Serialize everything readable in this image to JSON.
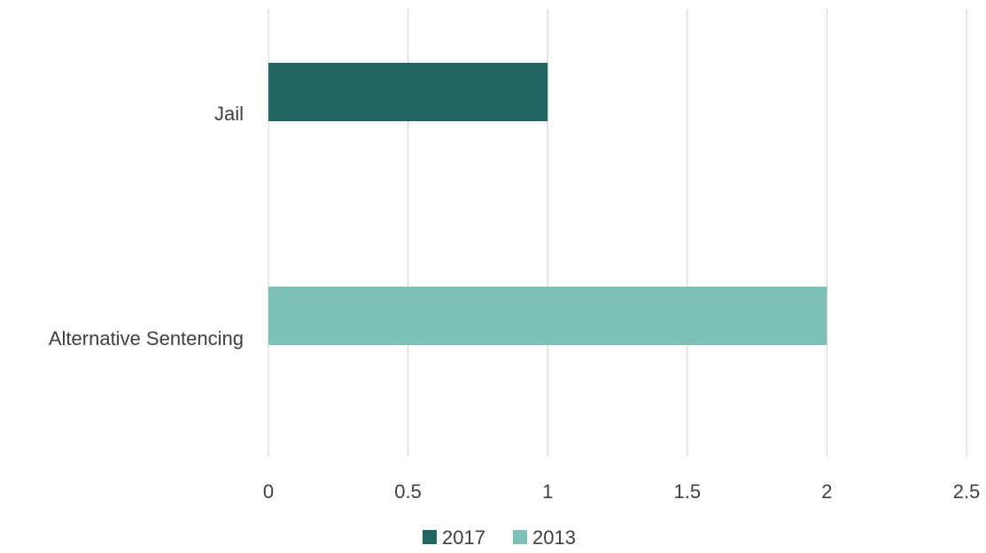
{
  "chart_data": {
    "type": "bar",
    "orientation": "horizontal",
    "stacked": true,
    "title": "",
    "xlabel": "",
    "ylabel": "",
    "categories": [
      "Jail",
      "Alternative Sentencing"
    ],
    "series": [
      {
        "name": "2017",
        "values": [
          1,
          0
        ],
        "color": "#226663"
      },
      {
        "name": "2013",
        "values": [
          0,
          2
        ],
        "color": "#7cc0b7"
      }
    ],
    "xlim": [
      0,
      2.5
    ],
    "xticks": [
      "0",
      "0.5",
      "1",
      "1.5",
      "2",
      "2.5"
    ],
    "grid": "vertical",
    "legend_position": "bottom"
  }
}
